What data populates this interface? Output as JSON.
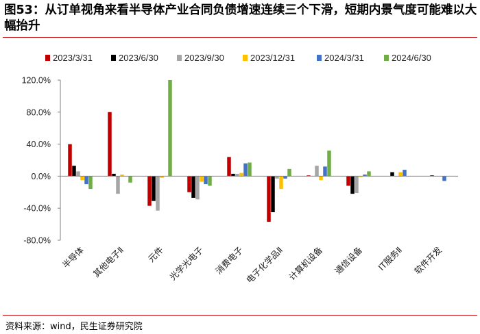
{
  "title": "图53：从订单视角来看半导体产业合同负债增速连续三个下滑，短期内景气度可能难以大幅抬升",
  "source": "资料来源：wind，民生证券研究院",
  "chart_data": {
    "type": "bar",
    "categories": [
      "半导体",
      "其他电子Ⅱ",
      "元件",
      "光学光电子",
      "消费电子",
      "电子化学品Ⅱ",
      "计算机设备",
      "通信设备",
      "IT服务Ⅱ",
      "软件开发"
    ],
    "series": [
      {
        "name": "2023/3/31",
        "color": "#c00000",
        "values": [
          40,
          80,
          -37,
          -20,
          24,
          -57,
          1,
          -12,
          0,
          0
        ]
      },
      {
        "name": "2023/6/30",
        "color": "#000000",
        "values": [
          13,
          3,
          -31,
          -27,
          3,
          -45,
          0,
          -22,
          5,
          1
        ]
      },
      {
        "name": "2023/9/30",
        "color": "#a6a6a6",
        "values": [
          6,
          -22,
          -43,
          -29,
          3,
          -3,
          13,
          -21,
          0,
          0
        ]
      },
      {
        "name": "2023/12/31",
        "color": "#ffc000",
        "values": [
          -5,
          2,
          -2,
          -7,
          4,
          -16,
          -5,
          -1,
          5,
          0
        ]
      },
      {
        "name": "2024/3/31",
        "color": "#4472c4",
        "values": [
          -10,
          0,
          0,
          -10,
          16,
          -3,
          12,
          2,
          8,
          -6
        ]
      },
      {
        "name": "2024/6/30",
        "color": "#70ad47",
        "values": [
          -16,
          -8,
          120,
          -12,
          17,
          9,
          32,
          6,
          0,
          0
        ]
      }
    ],
    "yticks": [
      "120.0%",
      "80.0%",
      "40.0%",
      "0.0%",
      "-40.0%",
      "-80.0%"
    ],
    "ylim": [
      -80,
      120
    ],
    "ylabel": "",
    "xlabel": "",
    "legend_position": "top"
  }
}
